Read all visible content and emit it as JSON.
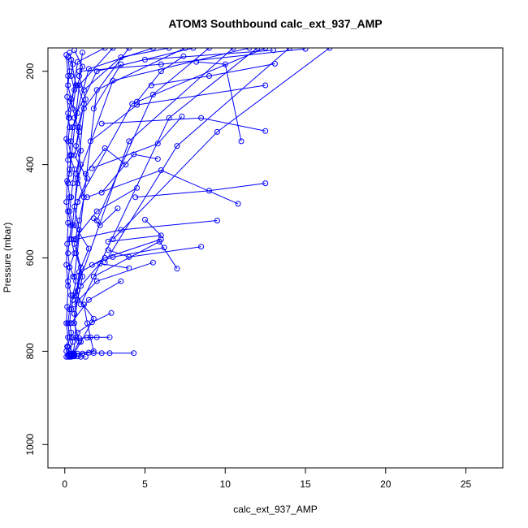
{
  "chart_data": {
    "type": "line",
    "title": "ATOM3 Southbound calc_ext_937_AMP",
    "xlabel": "calc_ext_937_AMP",
    "ylabel": "Pressure (mbar)",
    "xlim": [
      -1.05,
      27.3
    ],
    "ylim": [
      150,
      1050
    ],
    "y_reversed": true,
    "x_ticks": [
      0,
      5,
      10,
      15,
      20,
      25
    ],
    "x_tick_labels": [
      "0",
      "5",
      "10",
      "15",
      "20",
      "25"
    ],
    "y_ticks": [
      200,
      400,
      600,
      800,
      1000
    ],
    "y_tick_labels": [
      "200",
      "400",
      "600",
      "800",
      "1000"
    ],
    "grid": false,
    "legend": "none",
    "line_color": "#0000ff",
    "marker": "open-circle",
    "series": [
      {
        "x": [
          0.3,
          0.5,
          0.4,
          0.6,
          0.3,
          0.8,
          0.5,
          0.4,
          0.3,
          0.6,
          0.5,
          0.4,
          0.3,
          0.5,
          0.4,
          0.6,
          0.3,
          0.7,
          0.5,
          0.4,
          0.3,
          0.4,
          0.5,
          0.3,
          0.4,
          0.6,
          0.3,
          0.4,
          0.5,
          0.3
        ],
        "y": [
          160,
          185,
          210,
          240,
          265,
          290,
          320,
          350,
          380,
          410,
          440,
          470,
          500,
          530,
          560,
          590,
          620,
          650,
          680,
          710,
          740,
          760,
          780,
          800,
          805,
          808,
          810,
          810,
          811,
          812
        ]
      },
      {
        "x": [
          0.2,
          0.3,
          0.2,
          0.4,
          0.2,
          0.3,
          0.2,
          0.4,
          0.3,
          0.2,
          0.3,
          0.2,
          0.4,
          0.3,
          0.2,
          0.3,
          0.2,
          0.4,
          0.3,
          0.2,
          0.3,
          0.2,
          0.3,
          0.2
        ],
        "y": [
          170,
          200,
          230,
          260,
          290,
          320,
          350,
          380,
          410,
          440,
          470,
          500,
          530,
          560,
          590,
          620,
          650,
          680,
          710,
          740,
          770,
          790,
          805,
          812
        ]
      },
      {
        "x": [
          0.1,
          0.2,
          0.15,
          0.25,
          0.1,
          0.2,
          0.15,
          0.1,
          0.2,
          0.15,
          0.1,
          0.2,
          0.15,
          0.1,
          0.2,
          0.15,
          0.1,
          0.2,
          0.1
        ],
        "y": [
          165,
          210,
          255,
          300,
          345,
          390,
          435,
          480,
          525,
          570,
          615,
          660,
          705,
          740,
          770,
          790,
          800,
          808,
          812
        ]
      },
      {
        "x": [
          0.6,
          1.1,
          0.8,
          1.2,
          0.9,
          0.7,
          1.0,
          0.8,
          0.6,
          0.9,
          0.7,
          1.1,
          0.8,
          0.6,
          0.9,
          0.5
        ],
        "y": [
          155,
          190,
          230,
          270,
          320,
          360,
          400,
          440,
          490,
          540,
          590,
          640,
          690,
          740,
          780,
          805
        ]
      },
      {
        "x": [
          1.1,
          0.9,
          1.3,
          0.8,
          1.0,
          0.7,
          1.2,
          0.9,
          0.6,
          1.0,
          0.8,
          0.6,
          0.7,
          0.5
        ],
        "y": [
          160,
          210,
          260,
          320,
          370,
          420,
          470,
          520,
          570,
          620,
          670,
          720,
          770,
          806
        ]
      },
      {
        "x": [
          0.4,
          0.7,
          0.5,
          0.9,
          0.6,
          1.4,
          0.8,
          0.6,
          1.5,
          0.9,
          0.7,
          1.8,
          1.0,
          0.5
        ],
        "y": [
          175,
          230,
          280,
          330,
          380,
          430,
          480,
          530,
          580,
          630,
          680,
          730,
          780,
          810
        ]
      },
      {
        "x": [
          3.5,
          1.8
        ],
        "y": [
          185,
          280
        ]
      },
      {
        "x": [
          13.1,
          9.0,
          5.4
        ],
        "y": [
          184,
          210,
          230
        ]
      },
      {
        "x": [
          12.5,
          4.5,
          1.6
        ],
        "y": [
          230,
          272,
          350
        ]
      },
      {
        "x": [
          7.4,
          6.0,
          4.5
        ],
        "y": [
          168,
          200,
          265
        ]
      },
      {
        "x": [
          8.2,
          10.0,
          11.0
        ],
        "y": [
          180,
          185,
          350
        ]
      },
      {
        "x": [
          12.5,
          8.5,
          2.3
        ],
        "y": [
          328,
          300,
          312
        ]
      },
      {
        "x": [
          7.3,
          5.8,
          1.7
        ],
        "y": [
          297,
          355,
          408
        ]
      },
      {
        "x": [
          12.5,
          9.0,
          4.4
        ],
        "y": [
          440,
          456,
          470
        ]
      },
      {
        "x": [
          10.8,
          6.0,
          1.4
        ],
        "y": [
          484,
          412,
          470
        ]
      },
      {
        "x": [
          3.8,
          2.5,
          1.3
        ],
        "y": [
          400,
          365,
          420
        ]
      },
      {
        "x": [
          5.8,
          4.3,
          2.3
        ],
        "y": [
          388,
          378,
          460
        ]
      },
      {
        "x": [
          3.3,
          2.2,
          1.8
        ],
        "y": [
          494,
          530,
          515
        ]
      },
      {
        "x": [
          5.0,
          6.0,
          2.7
        ],
        "y": [
          518,
          552,
          565
        ]
      },
      {
        "x": [
          8.5,
          4.0,
          2.7
        ],
        "y": [
          576,
          598,
          583
        ]
      },
      {
        "x": [
          7.0,
          5.9,
          1.8
        ],
        "y": [
          623,
          565,
          640
        ]
      },
      {
        "x": [
          6.2,
          3.0,
          1.7
        ],
        "y": [
          578,
          598,
          615
        ]
      },
      {
        "x": [
          4.0,
          2.2,
          1.0
        ],
        "y": [
          622,
          612,
          660
        ]
      },
      {
        "x": [
          2.9,
          1.7,
          0.8
        ],
        "y": [
          718,
          738,
          760
        ]
      },
      {
        "x": [
          1.2,
          1.4,
          1.6,
          1.8,
          0.8
        ],
        "y": [
          700,
          740,
          770,
          800,
          805
        ]
      },
      {
        "x": [
          4.3,
          2.8,
          2.3,
          1.8,
          1.5,
          1.1,
          0.6
        ],
        "y": [
          804,
          804,
          804,
          804,
          803,
          805,
          806
        ]
      },
      {
        "x": [
          1.3,
          1.0,
          0.8,
          0.6,
          0.4
        ],
        "y": [
          812,
          812,
          811,
          811,
          812
        ]
      },
      {
        "x": [
          2.8,
          2.0,
          1.4,
          0.9,
          0.5
        ],
        "y": [
          770,
          770,
          771,
          772,
          771
        ]
      },
      {
        "x": [
          16.5,
          9.5,
          3.0
        ],
        "y": [
          150,
          330,
          560
        ]
      },
      {
        "x": [
          14.0,
          7.0,
          2.5
        ],
        "y": [
          150,
          360,
          610
        ]
      },
      {
        "x": [
          12.0,
          6.5,
          1.0
        ],
        "y": [
          150,
          300,
          700
        ]
      },
      {
        "x": [
          10.5,
          4.0,
          0.5
        ],
        "y": [
          150,
          350,
          690
        ]
      },
      {
        "x": [
          9.0,
          5.5,
          2.0
        ],
        "y": [
          150,
          250,
          520
        ]
      },
      {
        "x": [
          11.5,
          3.0,
          0.8
        ],
        "y": [
          150,
          220,
          430
        ]
      },
      {
        "x": [
          8.0,
          2.0,
          0.6
        ],
        "y": [
          150,
          200,
          300
        ]
      },
      {
        "x": [
          6.5,
          3.5,
          1.2
        ],
        "y": [
          150,
          170,
          240
        ]
      },
      {
        "x": [
          13.0,
          5.0
        ],
        "y": [
          155,
          175
        ]
      },
      {
        "x": [
          15.0,
          6.0,
          0.9
        ],
        "y": [
          152,
          185,
          200
        ]
      },
      {
        "x": [
          5.5,
          1.5,
          0.5
        ],
        "y": [
          150,
          195,
          320
        ]
      },
      {
        "x": [
          12.5,
          4.2,
          0.8
        ],
        "y": [
          150,
          270,
          480
        ]
      },
      {
        "x": [
          7.5,
          2.0,
          0.6
        ],
        "y": [
          150,
          240,
          640
        ]
      },
      {
        "x": [
          4.0,
          1.2,
          0.4
        ],
        "y": [
          150,
          280,
          560
        ]
      },
      {
        "x": [
          3.0,
          0.9,
          0.3
        ],
        "y": [
          150,
          230,
          420
        ]
      },
      {
        "x": [
          2.5,
          0.8,
          0.3
        ],
        "y": [
          150,
          180,
          300
        ]
      },
      {
        "x": [
          9.5,
          3.5,
          0.7
        ],
        "y": [
          520,
          540,
          560
        ]
      },
      {
        "x": [
          6.0,
          2.5,
          0.5
        ],
        "y": [
          560,
          600,
          640
        ]
      },
      {
        "x": [
          5.5,
          2.0,
          0.6
        ],
        "y": [
          610,
          650,
          700
        ]
      },
      {
        "x": [
          3.5,
          1.5,
          0.4
        ],
        "y": [
          650,
          690,
          740
        ]
      },
      {
        "x": [
          4.5,
          2.0,
          0.6
        ],
        "y": [
          450,
          500,
          560
        ]
      }
    ]
  }
}
